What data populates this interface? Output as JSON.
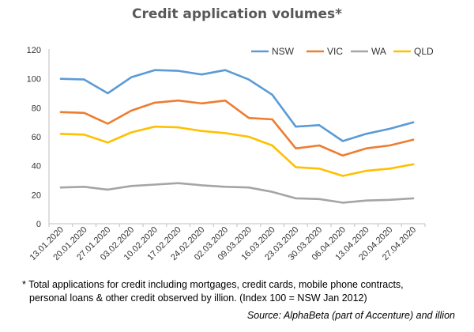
{
  "chart_data": {
    "type": "line",
    "title": "Credit application volumes*",
    "categories": [
      "13.01.2020",
      "20.01.2020",
      "27.01.2020",
      "03.02.2020",
      "10.02.2020",
      "17.02.2020",
      "24.02.2020",
      "02.03.2020",
      "09.03.2020",
      "16.03.2020",
      "23.03.2020",
      "30.03.2020",
      "06.04.2020",
      "13.04.2020",
      "20.04.2020",
      "27.04.2020"
    ],
    "ylim": [
      0,
      120
    ],
    "yticks": [
      0,
      20,
      40,
      60,
      80,
      100,
      120
    ],
    "grid": false,
    "legend_position": "top-right",
    "series": [
      {
        "name": "NSW",
        "color": "#5b9bd5",
        "values": [
          100,
          99.5,
          90,
          101,
          106,
          105.5,
          103,
          106,
          99.5,
          89,
          67,
          68,
          57,
          62,
          65.5,
          70
        ]
      },
      {
        "name": "VIC",
        "color": "#ed7d31",
        "values": [
          77,
          76.5,
          69,
          78,
          83.5,
          85,
          83,
          85,
          73,
          72,
          52,
          54,
          47,
          52,
          54,
          58
        ]
      },
      {
        "name": "WA",
        "color": "#a5a5a5",
        "values": [
          25,
          25.5,
          23.5,
          26,
          27,
          28,
          26.5,
          25.5,
          25,
          22,
          17.5,
          17,
          14.5,
          16,
          16.5,
          17.5
        ]
      },
      {
        "name": "QLD",
        "color": "#ffc000",
        "values": [
          62,
          61.5,
          56,
          63,
          67,
          66.5,
          64,
          62.5,
          60,
          54,
          39,
          38,
          33,
          36.5,
          38,
          41
        ]
      }
    ]
  },
  "footnote": {
    "line1": "* Total applications for credit including mortgages, credit cards, mobile phone contracts,",
    "line2": "personal loans & other credit observed by illion. (Index 100 = NSW Jan 2012)"
  },
  "source": "Source: AlphaBeta (part of Accenture) and illion"
}
